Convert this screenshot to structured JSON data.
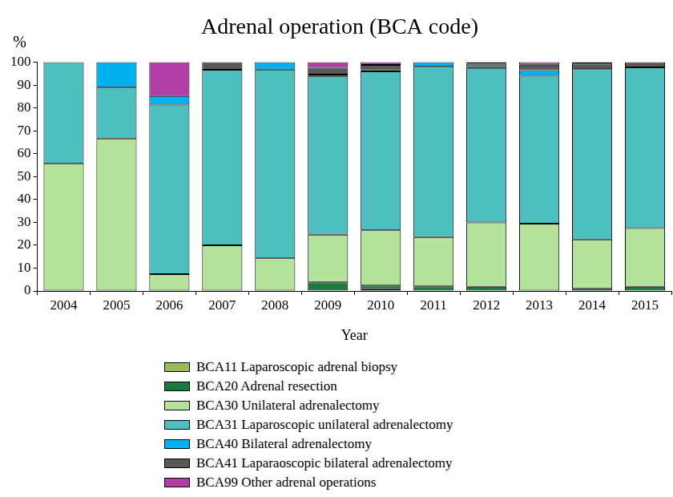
{
  "chart_data": {
    "type": "bar",
    "title": "Adrenal operation (BCA code)",
    "xlabel": "Year",
    "ylabel": "%",
    "categories": [
      "2004",
      "2005",
      "2006",
      "2007",
      "2008",
      "2009",
      "2010",
      "2011",
      "2012",
      "2013",
      "2014",
      "2015"
    ],
    "stacked": true,
    "grid": false,
    "ylim": [
      0,
      100
    ],
    "yticks": [
      0,
      10,
      20,
      30,
      40,
      50,
      60,
      70,
      80,
      90,
      100
    ],
    "legend": "bottom",
    "series": [
      {
        "name": "BCA11 Laparoscopic adrenal biopsy",
        "color": "#9bbb59",
        "values": [
          0,
          0,
          0,
          0,
          0,
          0,
          0.8,
          0,
          0,
          0,
          0,
          0
        ]
      },
      {
        "name": "BCA20 Adrenal resection",
        "color": "#1a7a40",
        "values": [
          0,
          0,
          0,
          0,
          0,
          3.8,
          1.6,
          2.0,
          1.8,
          0,
          1.0,
          1.8
        ]
      },
      {
        "name": "BCA30 Unilateral adrenalectomy",
        "color": "#b3e39a",
        "values": [
          55.6,
          66.7,
          7.4,
          20.0,
          14.3,
          20.8,
          24.1,
          21.6,
          28.2,
          29.4,
          21.5,
          25.7
        ]
      },
      {
        "name": "BCA31 Laparoscopic unilateral adrenalectomy",
        "color": "#4dbfbf",
        "values": [
          44.4,
          22.2,
          74.1,
          76.7,
          82.5,
          69.4,
          69.5,
          74.4,
          67.5,
          64.7,
          74.5,
          70.3
        ]
      },
      {
        "name": "BCA40 Bilateral adrenalectomy",
        "color": "#00b0f0",
        "values": [
          0,
          11.1,
          3.7,
          0,
          3.2,
          0.6,
          0.5,
          2.0,
          0.8,
          2.4,
          0,
          0
        ]
      },
      {
        "name": "BCA41 Laparaoscopic bilateral adrenalectomy",
        "color": "#595959",
        "values": [
          0,
          0,
          0,
          3.3,
          0,
          3.0,
          2.3,
          0,
          1.0,
          2.4,
          2.4,
          2.2
        ]
      },
      {
        "name": "BCA99 Other adrenal operations",
        "color": "#b03ea6",
        "values": [
          0,
          0,
          14.8,
          0,
          0,
          2.4,
          1.2,
          0,
          0.7,
          1.1,
          0.6,
          0
        ]
      }
    ]
  }
}
